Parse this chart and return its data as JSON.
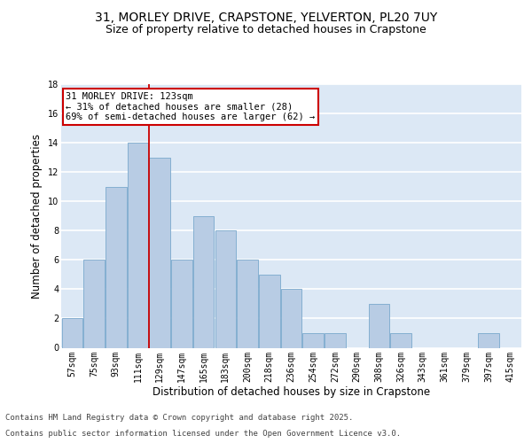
{
  "title_line1": "31, MORLEY DRIVE, CRAPSTONE, YELVERTON, PL20 7UY",
  "title_line2": "Size of property relative to detached houses in Crapstone",
  "xlabel": "Distribution of detached houses by size in Crapstone",
  "ylabel": "Number of detached properties",
  "categories": [
    "57sqm",
    "75sqm",
    "93sqm",
    "111sqm",
    "129sqm",
    "147sqm",
    "165sqm",
    "183sqm",
    "200sqm",
    "218sqm",
    "236sqm",
    "254sqm",
    "272sqm",
    "290sqm",
    "308sqm",
    "326sqm",
    "343sqm",
    "361sqm",
    "379sqm",
    "397sqm",
    "415sqm"
  ],
  "values": [
    2,
    6,
    11,
    14,
    13,
    6,
    9,
    8,
    6,
    5,
    4,
    1,
    1,
    0,
    3,
    1,
    0,
    0,
    0,
    1,
    0
  ],
  "bar_color": "#b8cce4",
  "bar_edge_color": "#7aa8cc",
  "background_color": "#dce8f5",
  "grid_color": "#ffffff",
  "annotation_box_text": "31 MORLEY DRIVE: 123sqm\n← 31% of detached houses are smaller (28)\n69% of semi-detached houses are larger (62) →",
  "annotation_box_color": "#ffffff",
  "annotation_box_edge": "#cc0000",
  "vline_color": "#cc0000",
  "ylim": [
    0,
    18
  ],
  "yticks": [
    0,
    2,
    4,
    6,
    8,
    10,
    12,
    14,
    16,
    18
  ],
  "footnote_line1": "Contains HM Land Registry data © Crown copyright and database right 2025.",
  "footnote_line2": "Contains public sector information licensed under the Open Government Licence v3.0.",
  "footnote_color": "#444444",
  "title_fontsize": 10,
  "subtitle_fontsize": 9,
  "axis_label_fontsize": 8.5,
  "tick_fontsize": 7,
  "annotation_fontsize": 7.5,
  "footnote_fontsize": 6.5
}
